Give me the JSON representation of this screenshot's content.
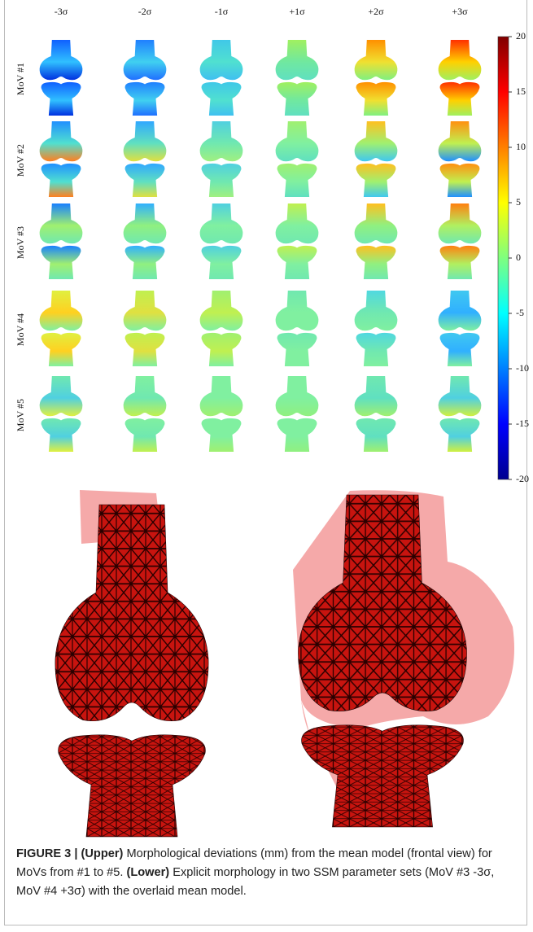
{
  "figure": {
    "columns": [
      "-3σ",
      "-2σ",
      "-1σ",
      "+1σ",
      "+2σ",
      "+3σ"
    ],
    "rows": [
      "MoV #1",
      "MoV #2",
      "MoV #3",
      "MoV #4",
      "MoV #5"
    ],
    "colorbar": {
      "lim": [
        -20,
        20
      ],
      "ticks": [
        20,
        15,
        10,
        5,
        0,
        -5,
        -10,
        -15,
        -20
      ]
    },
    "caption": {
      "label": "FIGURE 3 |",
      "upper_tag": "(Upper)",
      "upper_text": "Morphological deviations (mm) from the mean model (frontal view) for MoVs from #1 to #5.",
      "lower_tag": "(Lower)",
      "lower_text": "Explicit morphology in two SSM parameter sets (MoV #3 -3σ, MoV #4 +3σ) with the overlaid mean model."
    }
  }
}
